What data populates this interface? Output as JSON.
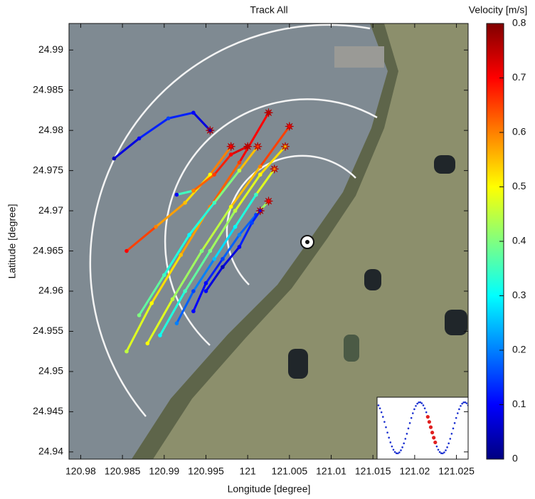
{
  "chart_data": {
    "type": "scatter",
    "title": "Track All",
    "xlabel": "Longitude [degree]",
    "ylabel": "Latitude [degree]",
    "xlim": [
      120.9786,
      121.0264
    ],
    "ylim": [
      24.9391,
      24.9933
    ],
    "xticks": [
      120.98,
      120.985,
      120.99,
      120.995,
      121,
      121.005,
      121.01,
      121.015,
      121.02,
      121.025
    ],
    "yticks": [
      24.94,
      24.945,
      24.95,
      24.955,
      24.96,
      24.965,
      24.97,
      24.975,
      24.98,
      24.985,
      24.99
    ],
    "colormap": "jet",
    "colorbar_label": "Velocity [m/s]",
    "clim": [
      0,
      0.8
    ],
    "cticks": [
      0,
      0.1,
      0.2,
      0.3,
      0.4,
      0.5,
      0.6,
      0.7,
      0.8
    ],
    "series": [
      {
        "x": [
          120.9855,
          120.9885,
          120.992,
          120.9955,
          120.999,
          121.0025
        ],
        "y": [
          24.9525,
          24.9585,
          24.9645,
          24.9705,
          24.976,
          24.9822
        ],
        "values": [
          0.45,
          0.5,
          0.55,
          0.6,
          0.65,
          0.75
        ]
      },
      {
        "x": [
          120.988,
          120.991,
          120.9945,
          120.998,
          121.0015,
          121.005
        ],
        "y": [
          24.9535,
          24.959,
          24.965,
          24.9705,
          24.9755,
          24.9805
        ],
        "values": [
          0.5,
          0.45,
          0.4,
          0.5,
          0.6,
          0.7
        ]
      },
      {
        "x": [
          120.9895,
          120.9925,
          120.9955,
          120.9985,
          121.0015,
          121.0045
        ],
        "y": [
          24.9545,
          24.96,
          24.965,
          24.97,
          24.9745,
          24.978
        ],
        "values": [
          0.3,
          0.35,
          0.4,
          0.45,
          0.5,
          0.55
        ]
      },
      {
        "x": [
          120.9915,
          120.9935,
          120.996,
          120.9985,
          121.001,
          121.0032
        ],
        "y": [
          24.956,
          24.96,
          24.964,
          24.968,
          24.972,
          24.9752
        ],
        "values": [
          0.2,
          0.15,
          0.25,
          0.3,
          0.35,
          0.6
        ]
      },
      {
        "x": [
          120.9935,
          120.995,
          120.997,
          120.999,
          121.001,
          121.0025
        ],
        "y": [
          24.9575,
          24.961,
          24.964,
          24.967,
          24.9695,
          24.9712
        ],
        "values": [
          0.1,
          0.1,
          0.15,
          0.2,
          0.15,
          0.7
        ]
      },
      {
        "x": [
          120.987,
          120.99,
          120.993,
          120.996,
          120.999,
          121.0012
        ],
        "y": [
          24.957,
          24.962,
          24.967,
          24.971,
          24.975,
          24.978
        ],
        "values": [
          0.4,
          0.35,
          0.3,
          0.35,
          0.45,
          0.65
        ]
      },
      {
        "x": [
          120.9855,
          120.989,
          120.9925,
          120.9955,
          120.998
        ],
        "y": [
          24.965,
          24.968,
          24.971,
          24.9745,
          24.978
        ],
        "values": [
          0.7,
          0.6,
          0.55,
          0.5,
          0.7
        ]
      },
      {
        "x": [
          120.984,
          120.987,
          120.9905,
          120.9935,
          120.9955
        ],
        "y": [
          24.9765,
          24.979,
          24.9815,
          24.9822,
          24.98
        ],
        "values": [
          0.05,
          0.1,
          0.15,
          0.1,
          0.05
        ]
      },
      {
        "x": [
          120.9915,
          120.9935,
          120.996,
          120.998,
          121
        ],
        "y": [
          24.972,
          24.9725,
          24.9745,
          24.977,
          24.978
        ],
        "values": [
          0.1,
          0.6,
          0.65,
          0.7,
          0.75
        ]
      },
      {
        "x": [
          120.995,
          120.997,
          120.999,
          121.0005,
          121.0015
        ],
        "y": [
          24.96,
          24.963,
          24.9655,
          24.9685,
          24.97
        ],
        "values": [
          0.1,
          0.05,
          0.1,
          0.15,
          0.1
        ]
      }
    ]
  }
}
